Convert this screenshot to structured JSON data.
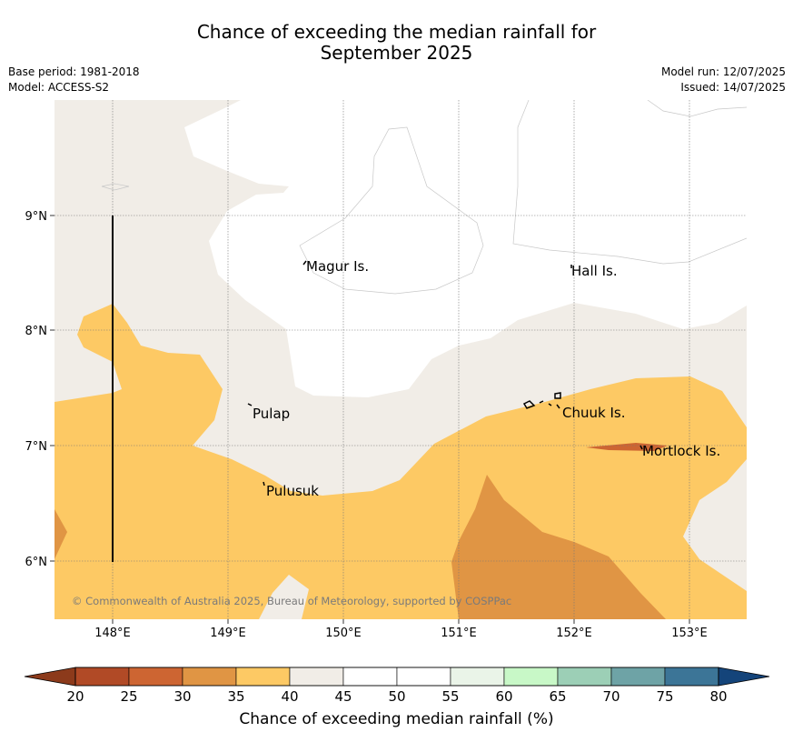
{
  "header": {
    "title_line1": "Chance of exceeding the median rainfall for",
    "title_line2": "September 2025",
    "base_period": "Base period: 1981-2018",
    "model": "Model: ACCESS-S2",
    "model_run": "Model run: 12/07/2025",
    "issued": "Issued: 14/07/2025"
  },
  "map": {
    "copyright": "© Commonwealth of Australia 2025, Bureau of Meteorology, supported by COSPPac",
    "lat_labels": [
      "9°N",
      "8°N",
      "7°N",
      "6°N"
    ],
    "lon_labels": [
      "148°E",
      "149°E",
      "150°E",
      "151°E",
      "152°E",
      "153°E"
    ],
    "places": [
      {
        "name": "Magur Is."
      },
      {
        "name": "Hall Is."
      },
      {
        "name": "Pulap"
      },
      {
        "name": "Chuuk Is."
      },
      {
        "name": "Mortlock Is."
      },
      {
        "name": "Pulusuk"
      }
    ],
    "colors": {
      "25-30": "#cd6532",
      "30-35": "#e09544",
      "35-40": "#fdc964",
      "40-45": "#f1ede7",
      "45-55": "#ffffff"
    }
  },
  "colorbar": {
    "label": "Chance of exceeding median rainfall (%)",
    "ticks": [
      "20",
      "25",
      "30",
      "35",
      "40",
      "45",
      "50",
      "55",
      "60",
      "65",
      "70",
      "75",
      "80"
    ],
    "under_color": "#8c3a1b",
    "over_color": "#14447a",
    "bins": [
      "#b14a26",
      "#cd6532",
      "#e09544",
      "#fdc964",
      "#f1ede7",
      "#ffffff",
      "#ffffff",
      "#eaf4e8",
      "#c8f8c7",
      "#9ccfb6",
      "#6ea3a6",
      "#3c7597"
    ]
  }
}
